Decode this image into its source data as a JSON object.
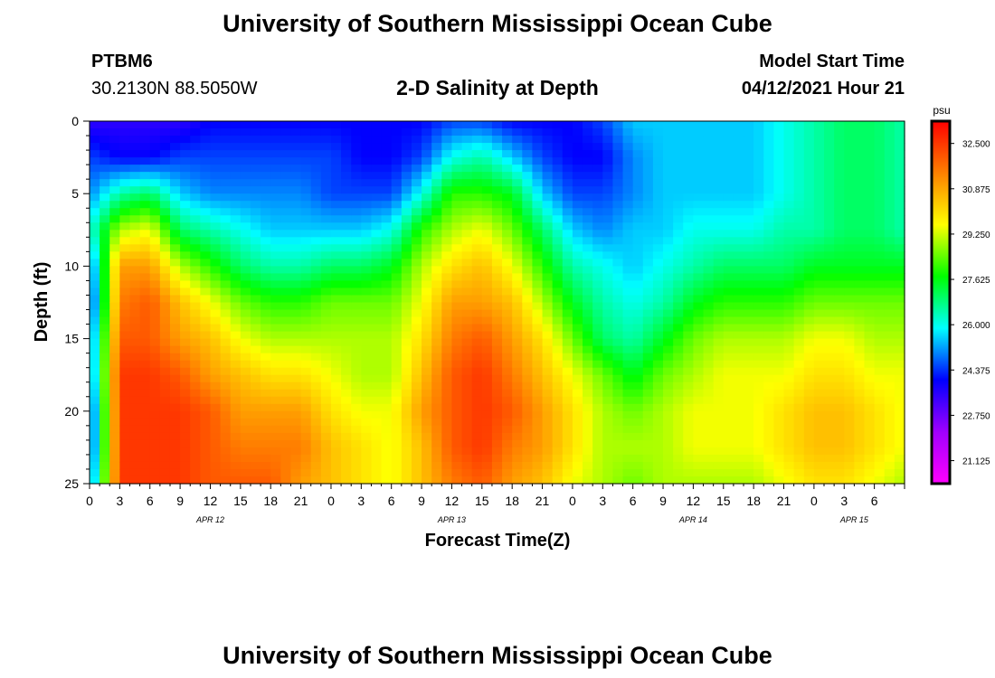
{
  "page": {
    "title_top": "University of Southern Mississippi Ocean Cube",
    "title_bottom": "University of Southern Mississippi Ocean Cube",
    "station": "PTBM6",
    "coords": "30.2130N  88.5050W",
    "subtitle": "2-D Salinity at Depth",
    "model_label": "Model Start Time",
    "model_time": "04/12/2021 Hour 21"
  },
  "chart_data": {
    "type": "heatmap",
    "title": "2-D Salinity at Depth",
    "xlabel": "Forecast Time(Z)",
    "ylabel": "Depth (ft)",
    "ylim": [
      0,
      25
    ],
    "y_inverted": true,
    "y_ticks": [
      0,
      5,
      10,
      15,
      20,
      25
    ],
    "x_range_hours": [
      0,
      81
    ],
    "x_tick_labels": [
      "0",
      "3",
      "6",
      "9",
      "12",
      "15",
      "18",
      "21",
      "0",
      "3",
      "6",
      "9",
      "12",
      "15",
      "18",
      "21",
      "0",
      "3",
      "6",
      "9",
      "12",
      "15",
      "18",
      "21",
      "0",
      "3",
      "6"
    ],
    "date_labels": [
      {
        "label": "APR 12",
        "hour": 12
      },
      {
        "label": "APR 13",
        "hour": 36
      },
      {
        "label": "APR 14",
        "hour": 60
      },
      {
        "label": "APR 15",
        "hour": 76
      }
    ],
    "colorbar": {
      "unit": "psu",
      "min": 20.3,
      "max": 33.3,
      "ticks": [
        "32.500",
        "30.875",
        "29.250",
        "27.625",
        "26.000",
        "24.375",
        "22.750",
        "21.125"
      ],
      "colors": [
        "#ff00ff",
        "#a000ff",
        "#0000ff",
        "#00ffff",
        "#00ff00",
        "#ffff00",
        "#ff8000",
        "#ff0000"
      ]
    },
    "time_hours": [
      0,
      3,
      6,
      9,
      12,
      15,
      18,
      21,
      24,
      27,
      30,
      33,
      36,
      39,
      42,
      45,
      48,
      51,
      54,
      57,
      60,
      63,
      66,
      69,
      72,
      75,
      78,
      81
    ],
    "depth_ft": [
      0,
      2.5,
      5,
      7.5,
      10,
      12.5,
      15,
      17.5,
      20,
      22.5,
      25
    ],
    "values": [
      [
        23.5,
        24.5,
        25.0,
        26.0,
        24.5,
        24.0,
        24.5,
        24.5,
        24.0,
        24.0,
        24.5
      ],
      [
        23.5,
        24.0,
        26.5,
        29.0,
        31.0,
        31.5,
        32.0,
        32.5,
        32.5,
        32.5,
        32.5
      ],
      [
        23.5,
        24.0,
        27.0,
        29.5,
        31.0,
        32.0,
        32.0,
        32.5,
        32.5,
        32.5,
        32.5
      ],
      [
        23.5,
        24.5,
        25.5,
        27.0,
        29.0,
        30.5,
        31.0,
        32.0,
        32.5,
        32.5,
        32.5
      ],
      [
        24.0,
        24.5,
        25.0,
        26.5,
        28.0,
        29.5,
        30.5,
        31.0,
        32.0,
        32.0,
        32.0
      ],
      [
        24.0,
        24.5,
        25.0,
        26.0,
        27.0,
        28.5,
        29.5,
        30.5,
        31.0,
        31.5,
        32.0
      ],
      [
        24.0,
        24.5,
        25.0,
        25.5,
        26.5,
        28.0,
        29.0,
        30.0,
        31.0,
        31.5,
        32.0
      ],
      [
        24.0,
        24.5,
        25.0,
        25.5,
        26.5,
        28.0,
        29.0,
        30.0,
        31.0,
        31.5,
        31.0
      ],
      [
        24.0,
        24.5,
        24.5,
        25.5,
        27.0,
        28.5,
        29.0,
        29.5,
        30.0,
        30.5,
        30.5
      ],
      [
        24.0,
        24.0,
        24.5,
        25.5,
        27.0,
        28.5,
        29.0,
        29.0,
        29.5,
        30.0,
        30.0
      ],
      [
        24.0,
        24.0,
        24.5,
        26.0,
        27.5,
        28.5,
        29.0,
        29.0,
        29.5,
        29.5,
        29.5
      ],
      [
        24.0,
        24.5,
        26.0,
        28.0,
        29.0,
        29.5,
        30.0,
        30.5,
        31.0,
        30.5,
        30.5
      ],
      [
        24.5,
        26.0,
        28.0,
        29.0,
        30.0,
        31.0,
        31.5,
        32.0,
        32.0,
        32.0,
        31.5
      ],
      [
        24.5,
        26.5,
        28.0,
        29.5,
        30.5,
        31.0,
        32.0,
        32.5,
        32.5,
        32.5,
        32.0
      ],
      [
        24.0,
        25.5,
        27.5,
        28.5,
        29.5,
        30.5,
        31.0,
        31.5,
        32.0,
        31.5,
        31.0
      ],
      [
        24.0,
        24.5,
        25.5,
        27.0,
        28.0,
        29.0,
        30.0,
        30.5,
        31.0,
        31.0,
        30.5
      ],
      [
        24.0,
        24.0,
        24.5,
        25.5,
        26.5,
        27.5,
        28.5,
        29.5,
        30.0,
        30.0,
        29.5
      ],
      [
        24.5,
        24.0,
        24.5,
        25.0,
        26.0,
        26.5,
        27.0,
        28.5,
        29.0,
        29.0,
        29.0
      ],
      [
        25.5,
        25.0,
        25.0,
        25.5,
        25.5,
        26.0,
        26.5,
        27.5,
        28.5,
        29.0,
        28.5
      ],
      [
        25.5,
        25.5,
        25.5,
        25.5,
        26.0,
        26.5,
        27.5,
        28.5,
        29.0,
        29.0,
        29.0
      ],
      [
        25.5,
        25.5,
        25.5,
        26.0,
        26.5,
        27.5,
        28.5,
        29.0,
        29.5,
        29.5,
        29.0
      ],
      [
        25.5,
        25.5,
        25.5,
        26.0,
        27.0,
        28.0,
        29.0,
        29.5,
        29.5,
        29.5,
        29.0
      ],
      [
        25.5,
        25.5,
        25.5,
        26.0,
        27.0,
        28.0,
        29.0,
        29.5,
        29.5,
        29.5,
        29.0
      ],
      [
        26.0,
        26.0,
        26.0,
        26.5,
        27.0,
        28.0,
        29.0,
        29.5,
        30.0,
        30.0,
        29.5
      ],
      [
        26.5,
        26.5,
        26.5,
        26.5,
        27.5,
        28.5,
        29.5,
        30.0,
        30.5,
        30.5,
        30.0
      ],
      [
        27.0,
        27.0,
        27.0,
        27.0,
        27.5,
        28.5,
        29.5,
        30.0,
        30.5,
        30.5,
        30.0
      ],
      [
        27.0,
        27.0,
        27.0,
        27.0,
        27.5,
        28.5,
        29.0,
        29.5,
        30.0,
        30.0,
        29.5
      ],
      [
        26.5,
        26.5,
        26.5,
        26.5,
        27.5,
        28.5,
        29.0,
        29.5,
        29.5,
        29.5,
        29.0
      ]
    ]
  }
}
